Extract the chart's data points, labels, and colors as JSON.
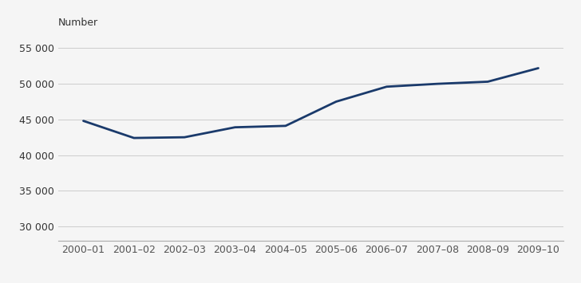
{
  "x_labels": [
    "2000–01",
    "2001–02",
    "2002–03",
    "2003–04",
    "2004–05",
    "2005–06",
    "2006–07",
    "2007–08",
    "2008–09",
    "2009–10"
  ],
  "y_values": [
    44800,
    42400,
    42500,
    43900,
    44100,
    47500,
    49600,
    50000,
    50300,
    52200
  ],
  "line_color": "#1a3a6b",
  "line_width": 2.0,
  "ylabel": "Number",
  "ylim": [
    28000,
    57000
  ],
  "yticks": [
    30000,
    35000,
    40000,
    45000,
    50000,
    55000
  ],
  "background_color": "#f5f5f5",
  "grid_color": "#cccccc",
  "ylabel_fontsize": 9,
  "tick_fontsize": 9
}
